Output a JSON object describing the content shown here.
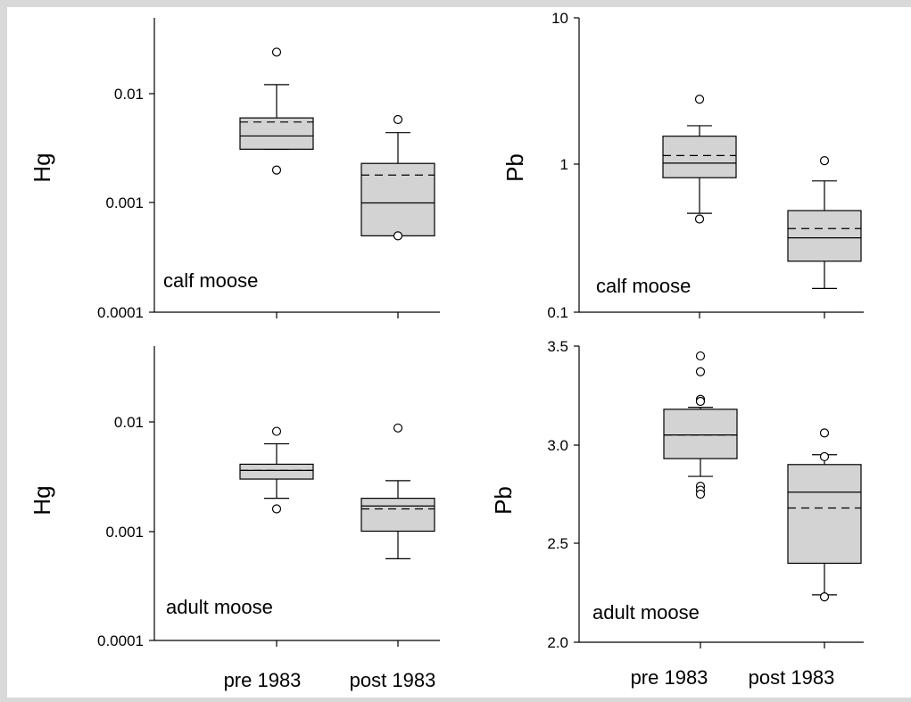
{
  "figure": {
    "categories": [
      "pre 1983",
      "post 1983"
    ],
    "background_color": "#d9d9d9",
    "box_fill_color": "#d3d3d3",
    "line_color": "#000000"
  },
  "chart_data": [
    {
      "type": "box",
      "panel_label": "calf moose",
      "ylabel": "Hg",
      "yscale": "log",
      "ylim": [
        0.0001,
        0.05
      ],
      "ytick_labels": [
        "0.01",
        "0.001",
        "0.0001"
      ],
      "yticks": [
        0.01,
        0.001,
        0.0001
      ],
      "boxes": [
        {
          "category": "pre 1983",
          "whisker_low": 0.0031,
          "q1": 0.0031,
          "median": 0.0041,
          "mean": 0.0055,
          "q3": 0.006,
          "whisker_high": 0.0121,
          "outliers": [
            0.024,
            0.002
          ]
        },
        {
          "category": "post 1983",
          "whisker_low": 0.0005,
          "q1": 0.0005,
          "median": 0.001,
          "mean": 0.0018,
          "q3": 0.0023,
          "whisker_high": 0.0044,
          "outliers": [
            0.0058,
            0.0005
          ]
        }
      ]
    },
    {
      "type": "box",
      "panel_label": "calf moose",
      "ylabel": "Pb",
      "yscale": "log",
      "ylim": [
        0.1,
        10
      ],
      "ytick_labels": [
        "10",
        "1",
        "0.1"
      ],
      "yticks": [
        10,
        1,
        0.1
      ],
      "boxes": [
        {
          "category": "pre 1983",
          "whisker_low": 0.47,
          "q1": 0.82,
          "median": 1.03,
          "mean": 1.16,
          "q3": 1.57,
          "whisker_high": 1.85,
          "outliers": [
            2.8,
            0.43
          ]
        },
        {
          "category": "post 1983",
          "whisker_low": 0.145,
          "q1": 0.222,
          "median": 0.32,
          "mean": 0.37,
          "q3": 0.49,
          "whisker_high": 0.78,
          "outliers": [
            1.07
          ]
        }
      ]
    },
    {
      "type": "box",
      "panel_label": "adult moose",
      "ylabel": "Hg",
      "yscale": "log",
      "ylim": [
        0.0001,
        0.05
      ],
      "ytick_labels": [
        "0.01",
        "0.001",
        "0.0001"
      ],
      "yticks": [
        0.01,
        0.001,
        0.0001
      ],
      "boxes": [
        {
          "category": "pre 1983",
          "whisker_low": 0.002,
          "q1": 0.003,
          "median": 0.0036,
          "mean": 0.0036,
          "q3": 0.0041,
          "whisker_high": 0.0063,
          "outliers": [
            0.0082,
            0.0016
          ]
        },
        {
          "category": "post 1983",
          "whisker_low": 0.00056,
          "q1": 0.001,
          "median": 0.0017,
          "mean": 0.0016,
          "q3": 0.002,
          "whisker_high": 0.0029,
          "outliers": [
            0.0088
          ]
        }
      ]
    },
    {
      "type": "box",
      "panel_label": "adult moose",
      "ylabel": "Pb",
      "yscale": "linear",
      "ylim": [
        2.0,
        3.5
      ],
      "ytick_labels": [
        "3.5",
        "3.0",
        "2.5",
        "2.0"
      ],
      "yticks": [
        3.5,
        3.0,
        2.5,
        2.0
      ],
      "boxes": [
        {
          "category": "pre 1983",
          "whisker_low": 2.84,
          "q1": 2.93,
          "median": 3.05,
          "mean": 3.05,
          "q3": 3.18,
          "whisker_high": 3.19,
          "outliers": [
            3.45,
            3.37,
            3.23,
            3.22,
            2.79,
            2.77,
            2.75
          ]
        },
        {
          "category": "post 1983",
          "whisker_low": 2.24,
          "q1": 2.4,
          "median": 2.76,
          "mean": 2.68,
          "q3": 2.9,
          "whisker_high": 2.95,
          "outliers": [
            3.06,
            2.94,
            2.23
          ]
        }
      ]
    }
  ]
}
